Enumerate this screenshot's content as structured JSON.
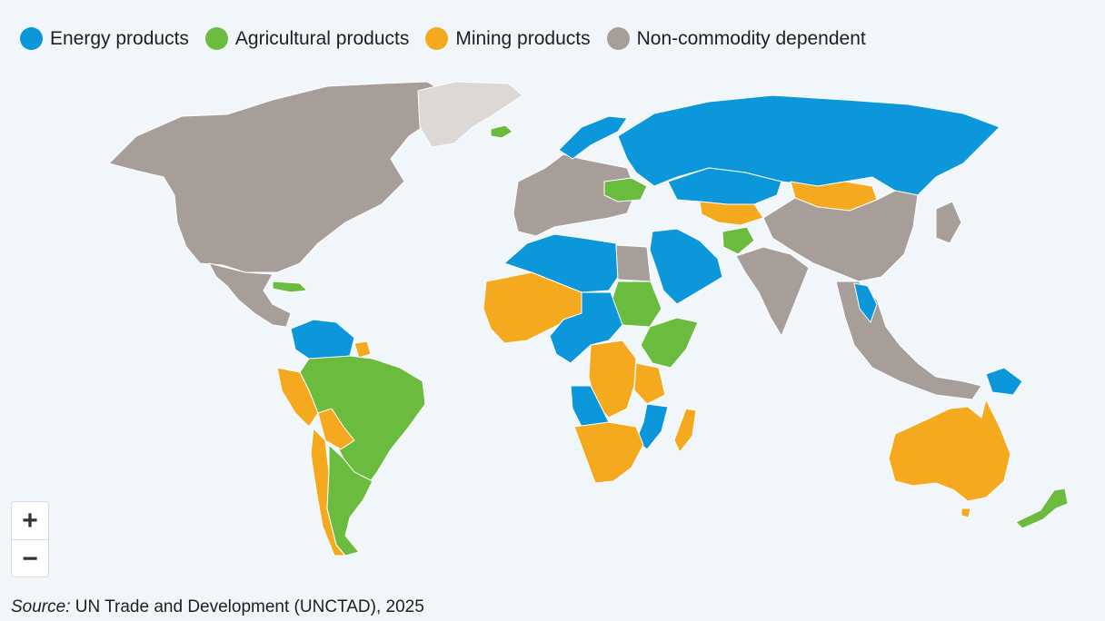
{
  "legend": {
    "items": [
      {
        "key": "energy",
        "label": "Energy products",
        "color": "#0b97d9"
      },
      {
        "key": "agri",
        "label": "Agricultural products",
        "color": "#6bbb3e"
      },
      {
        "key": "mining",
        "label": "Mining products",
        "color": "#f5a91e"
      },
      {
        "key": "noncommodity",
        "label": "Non-commodity dependent",
        "color": "#a89e99"
      }
    ]
  },
  "map": {
    "no_data_color": "#dcd8d6",
    "regions": [
      {
        "name": "North America",
        "category": "noncommodity"
      },
      {
        "name": "Greenland",
        "category": "nodata"
      },
      {
        "name": "Iceland",
        "category": "agri"
      },
      {
        "name": "Mexico & Central America",
        "category": "noncommodity"
      },
      {
        "name": "Cuba",
        "category": "agri"
      },
      {
        "name": "Venezuela & Guianas",
        "category": "energy"
      },
      {
        "name": "Suriname",
        "category": "mining"
      },
      {
        "name": "Brazil & Paraguay",
        "category": "agri"
      },
      {
        "name": "Peru",
        "category": "mining"
      },
      {
        "name": "Bolivia",
        "category": "mining"
      },
      {
        "name": "Chile",
        "category": "mining"
      },
      {
        "name": "Argentina & Uruguay",
        "category": "agri"
      },
      {
        "name": "Europe",
        "category": "noncommodity"
      },
      {
        "name": "Norway",
        "category": "energy"
      },
      {
        "name": "Ukraine",
        "category": "agri"
      },
      {
        "name": "Russia",
        "category": "energy"
      },
      {
        "name": "Kazakhstan",
        "category": "energy"
      },
      {
        "name": "Central Asia",
        "category": "mining"
      },
      {
        "name": "Mongolia",
        "category": "mining"
      },
      {
        "name": "China & Asia",
        "category": "noncommodity"
      },
      {
        "name": "Arabian Peninsula",
        "category": "energy"
      },
      {
        "name": "Afghanistan",
        "category": "agri"
      },
      {
        "name": "India",
        "category": "noncommodity"
      },
      {
        "name": "Southeast Asia",
        "category": "noncommodity"
      },
      {
        "name": "Laos",
        "category": "energy"
      },
      {
        "name": "Papua New Guinea",
        "category": "energy"
      },
      {
        "name": "North Africa",
        "category": "energy"
      },
      {
        "name": "Egypt",
        "category": "noncommodity"
      },
      {
        "name": "West Africa",
        "category": "mining"
      },
      {
        "name": "Sudan",
        "category": "agri"
      },
      {
        "name": "Chad & Central Africa",
        "category": "energy"
      },
      {
        "name": "Ethiopia & Kenya",
        "category": "agri"
      },
      {
        "name": "DR Congo & Zambia",
        "category": "mining"
      },
      {
        "name": "Angola",
        "category": "energy"
      },
      {
        "name": "Tanzania",
        "category": "mining"
      },
      {
        "name": "Mozambique",
        "category": "energy"
      },
      {
        "name": "Southern Africa",
        "category": "mining"
      },
      {
        "name": "Madagascar",
        "category": "mining"
      },
      {
        "name": "Australia",
        "category": "mining"
      },
      {
        "name": "New Zealand",
        "category": "agri"
      },
      {
        "name": "Japan",
        "category": "noncommodity"
      }
    ]
  },
  "zoom": {
    "in_label": "+",
    "out_label": "−"
  },
  "source": {
    "prefix": "Source:",
    "text": " UN Trade and Development (UNCTAD), 2025"
  }
}
